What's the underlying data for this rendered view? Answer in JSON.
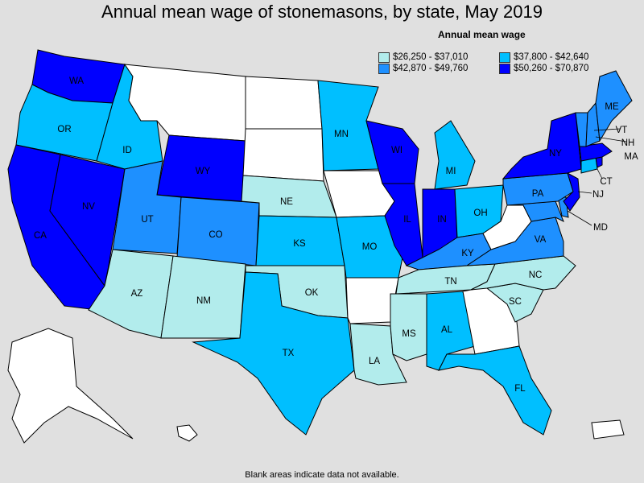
{
  "title": "Annual mean wage of stonemasons, by state, May 2019",
  "footnote": "Blank areas indicate data not available.",
  "legend": {
    "title": "Annual mean wage",
    "items": [
      {
        "label": "$26,250 - $37,010",
        "color": "#b2ecec"
      },
      {
        "label": "$37,800 - $42,640",
        "color": "#00bfff"
      },
      {
        "label": "$42,870 - $49,760",
        "color": "#1e90ff"
      },
      {
        "label": "$50,260 - $70,870",
        "color": "#0000ff"
      }
    ]
  },
  "no_data_color": "#ffffff",
  "states": {
    "WA": {
      "label": "WA",
      "bin": 3
    },
    "OR": {
      "label": "OR",
      "bin": 1
    },
    "CA": {
      "label": "CA",
      "bin": 3
    },
    "NV": {
      "label": "NV",
      "bin": 3
    },
    "ID": {
      "label": "ID",
      "bin": 1
    },
    "MT": {
      "label": "",
      "bin": null
    },
    "WY": {
      "label": "WY",
      "bin": 3
    },
    "UT": {
      "label": "UT",
      "bin": 2
    },
    "CO": {
      "label": "CO",
      "bin": 2
    },
    "AZ": {
      "label": "AZ",
      "bin": 0
    },
    "NM": {
      "label": "NM",
      "bin": 0
    },
    "ND": {
      "label": "",
      "bin": null
    },
    "SD": {
      "label": "",
      "bin": null
    },
    "NE": {
      "label": "NE",
      "bin": 0
    },
    "KS": {
      "label": "KS",
      "bin": 1
    },
    "OK": {
      "label": "OK",
      "bin": 0
    },
    "TX": {
      "label": "TX",
      "bin": 1
    },
    "MN": {
      "label": "MN",
      "bin": 1
    },
    "IA": {
      "label": "",
      "bin": null
    },
    "MO": {
      "label": "MO",
      "bin": 1
    },
    "AR": {
      "label": "",
      "bin": null
    },
    "LA": {
      "label": "LA",
      "bin": 0
    },
    "WI": {
      "label": "WI",
      "bin": 3
    },
    "IL": {
      "label": "IL",
      "bin": 3
    },
    "MI": {
      "label": "MI",
      "bin": 1
    },
    "IN": {
      "label": "IN",
      "bin": 3
    },
    "OH": {
      "label": "OH",
      "bin": 1
    },
    "KY": {
      "label": "KY",
      "bin": 2
    },
    "TN": {
      "label": "TN",
      "bin": 0
    },
    "MS": {
      "label": "MS",
      "bin": 0
    },
    "AL": {
      "label": "AL",
      "bin": 1
    },
    "GA": {
      "label": "",
      "bin": null
    },
    "FL": {
      "label": "FL",
      "bin": 1
    },
    "SC": {
      "label": "SC",
      "bin": 0
    },
    "NC": {
      "label": "NC",
      "bin": 0
    },
    "VA": {
      "label": "VA",
      "bin": 2
    },
    "WV": {
      "label": "",
      "bin": null
    },
    "MD": {
      "label": "MD",
      "bin": 2
    },
    "DE": {
      "label": "",
      "bin": 2
    },
    "PA": {
      "label": "PA",
      "bin": 2
    },
    "NJ": {
      "label": "NJ",
      "bin": 3
    },
    "NY": {
      "label": "NY",
      "bin": 3
    },
    "CT": {
      "label": "CT",
      "bin": 1
    },
    "RI": {
      "label": "",
      "bin": 3
    },
    "MA": {
      "label": "MA",
      "bin": 3
    },
    "VT": {
      "label": "VT",
      "bin": 2
    },
    "NH": {
      "label": "NH",
      "bin": 2
    },
    "ME": {
      "label": "ME",
      "bin": 2
    },
    "AK": {
      "label": "",
      "bin": null
    },
    "HI": {
      "label": "",
      "bin": null
    },
    "PR": {
      "label": "",
      "bin": null
    }
  }
}
